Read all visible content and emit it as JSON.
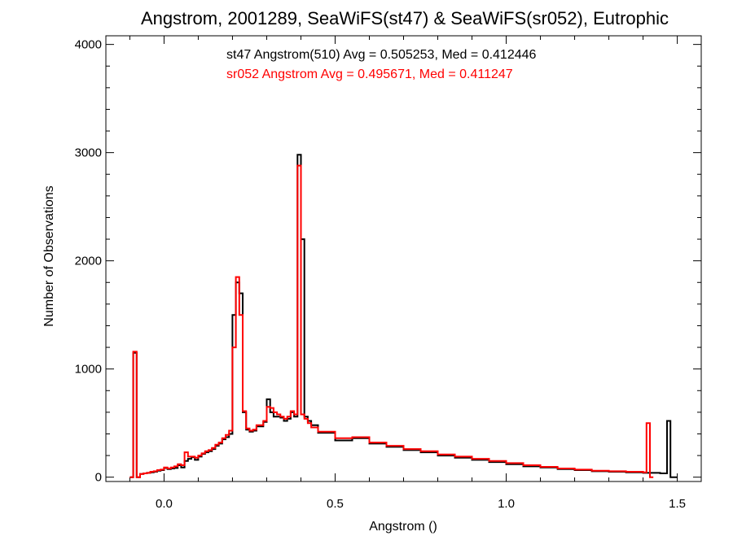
{
  "chart_data": {
    "type": "line",
    "title": "Angstrom, 2001289, SeaWiFS(st47) & SeaWiFS(sr052), Eutrophic",
    "xlabel": "Angstrom ()",
    "ylabel": "Number of Observations",
    "xlim": [
      -0.17,
      1.57
    ],
    "ylim": [
      -40,
      4080
    ],
    "x_ticks": [
      0.0,
      0.5,
      1.0,
      1.5
    ],
    "x_tick_labels": [
      "0.0",
      "0.5",
      "1.0",
      "1.5"
    ],
    "y_ticks": [
      0,
      1000,
      2000,
      3000,
      4000
    ],
    "y_tick_labels": [
      "0",
      "1000",
      "2000",
      "3000",
      "4000"
    ],
    "grid": false,
    "annotations": [
      {
        "text": "st47 Angstrom(510) Avg = 0.505253, Med = 0.412446",
        "color": "#000000"
      },
      {
        "text": "sr052 Angstrom Avg = 0.495671, Med = 0.411247",
        "color": "#ff0000"
      }
    ],
    "series": [
      {
        "color": "#000000",
        "x": [
          -0.1,
          -0.09,
          -0.08,
          -0.07,
          -0.06,
          -0.05,
          -0.04,
          -0.03,
          -0.02,
          -0.01,
          0.0,
          0.01,
          0.02,
          0.03,
          0.04,
          0.05,
          0.06,
          0.07,
          0.08,
          0.09,
          0.1,
          0.11,
          0.12,
          0.13,
          0.14,
          0.15,
          0.16,
          0.17,
          0.18,
          0.19,
          0.2,
          0.21,
          0.22,
          0.23,
          0.24,
          0.25,
          0.26,
          0.27,
          0.28,
          0.29,
          0.3,
          0.31,
          0.32,
          0.33,
          0.34,
          0.35,
          0.36,
          0.37,
          0.38,
          0.39,
          0.4,
          0.41,
          0.42,
          0.43,
          0.45,
          0.5,
          0.55,
          0.6,
          0.65,
          0.7,
          0.75,
          0.8,
          0.85,
          0.9,
          0.95,
          1.0,
          1.05,
          1.1,
          1.15,
          1.2,
          1.25,
          1.3,
          1.35,
          1.4,
          1.45,
          1.47,
          1.48,
          1.49
        ],
        "y": [
          0,
          1150,
          0,
          30,
          35,
          40,
          45,
          50,
          60,
          65,
          85,
          75,
          80,
          85,
          110,
          90,
          150,
          170,
          185,
          160,
          190,
          215,
          230,
          240,
          260,
          290,
          310,
          350,
          370,
          400,
          1500,
          1800,
          1700,
          600,
          440,
          420,
          430,
          470,
          470,
          510,
          720,
          600,
          560,
          560,
          550,
          520,
          540,
          600,
          560,
          2980,
          2200,
          560,
          520,
          480,
          410,
          340,
          360,
          310,
          280,
          250,
          230,
          200,
          180,
          160,
          140,
          120,
          100,
          90,
          75,
          65,
          55,
          50,
          45,
          40,
          35,
          520,
          0,
          0
        ]
      },
      {
        "color": "#ff0000",
        "x": [
          -0.1,
          -0.09,
          -0.08,
          -0.07,
          -0.06,
          -0.05,
          -0.04,
          -0.03,
          -0.02,
          -0.01,
          0.0,
          0.01,
          0.02,
          0.03,
          0.04,
          0.05,
          0.06,
          0.07,
          0.08,
          0.09,
          0.1,
          0.11,
          0.12,
          0.13,
          0.14,
          0.15,
          0.16,
          0.17,
          0.18,
          0.19,
          0.2,
          0.21,
          0.22,
          0.23,
          0.24,
          0.25,
          0.26,
          0.27,
          0.28,
          0.29,
          0.3,
          0.31,
          0.32,
          0.33,
          0.34,
          0.35,
          0.36,
          0.37,
          0.38,
          0.39,
          0.4,
          0.41,
          0.42,
          0.43,
          0.45,
          0.5,
          0.55,
          0.6,
          0.65,
          0.7,
          0.75,
          0.8,
          0.85,
          0.9,
          0.95,
          1.0,
          1.05,
          1.1,
          1.15,
          1.2,
          1.25,
          1.3,
          1.35,
          1.4,
          1.41,
          1.42
        ],
        "y": [
          0,
          1160,
          0,
          30,
          35,
          40,
          50,
          55,
          65,
          70,
          90,
          80,
          90,
          100,
          120,
          110,
          230,
          190,
          190,
          180,
          200,
          220,
          240,
          250,
          270,
          300,
          320,
          360,
          390,
          430,
          1200,
          1850,
          1500,
          610,
          450,
          430,
          440,
          480,
          480,
          520,
          650,
          640,
          600,
          580,
          560,
          540,
          560,
          610,
          580,
          2880,
          580,
          540,
          500,
          460,
          420,
          360,
          370,
          320,
          290,
          260,
          240,
          210,
          190,
          170,
          150,
          130,
          110,
          95,
          80,
          70,
          60,
          55,
          50,
          45,
          500,
          0
        ]
      }
    ]
  }
}
